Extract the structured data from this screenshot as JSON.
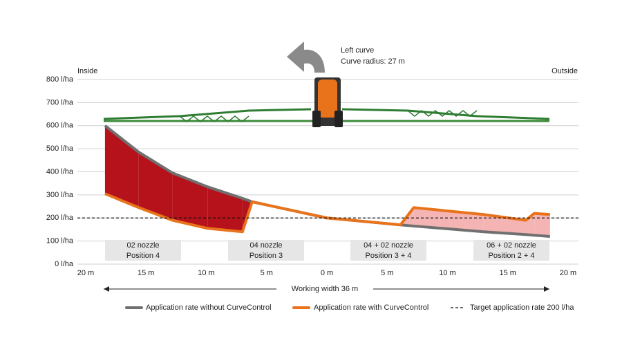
{
  "chart_data": {
    "type": "line",
    "label_inside": "Inside",
    "label_outside": "Outside",
    "annotation": [
      "Left curve",
      "Curve radius: 27 m"
    ],
    "x_axis_label": "Working width 36 m",
    "x": [
      -18.4,
      -15.6,
      -12.8,
      -9.9,
      -7.0,
      -6.2,
      0,
      6.1,
      7.2,
      13,
      16.5,
      17.2,
      18.5
    ],
    "series": [
      {
        "name": "Application rate without CurveControl",
        "color": "#707070",
        "values": [
          600,
          485,
          395,
          335,
          285,
          270,
          200,
          170,
          165,
          140,
          128,
          125,
          120
        ]
      },
      {
        "name": "Application rate with CurveControl",
        "color": "#e8731a",
        "values": [
          305,
          245,
          190,
          155,
          140,
          270,
          200,
          170,
          245,
          215,
          190,
          220,
          215
        ]
      }
    ],
    "target": {
      "name": "Target application rate 200 l/ha",
      "value": 200
    },
    "nozzles": [
      [
        "02 nozzle",
        "Position 4"
      ],
      [
        "04 nozzle",
        "Position 3"
      ],
      [
        "04 + 02 nozzle",
        "Position 3 + 4"
      ],
      [
        "06 + 02 nozzle",
        "Position 2 + 4"
      ]
    ],
    "xlim": [
      -20,
      20
    ],
    "xticks": [
      {
        "value": -20,
        "label": "20 m"
      },
      {
        "value": -15,
        "label": "15 m"
      },
      {
        "value": -10,
        "label": "10 m"
      },
      {
        "value": -5,
        "label": "5 m"
      },
      {
        "value": 0,
        "label": "0 m"
      },
      {
        "value": 5,
        "label": "5 m"
      },
      {
        "value": 10,
        "label": "10 m"
      },
      {
        "value": 15,
        "label": "15 m"
      },
      {
        "value": 20,
        "label": "20 m"
      }
    ],
    "ylim": [
      0,
      800
    ],
    "yticks": [
      {
        "value": 0,
        "label": "0 l/ha"
      },
      {
        "value": 100,
        "label": "100 l/ha"
      },
      {
        "value": 200,
        "label": "200 l/ha"
      },
      {
        "value": 300,
        "label": "300 l/ha"
      },
      {
        "value": 400,
        "label": "400 l/ha"
      },
      {
        "value": 500,
        "label": "500 l/ha"
      },
      {
        "value": 600,
        "label": "600 l/ha"
      },
      {
        "value": 700,
        "label": "700 l/ha"
      },
      {
        "value": 800,
        "label": "800 l/ha"
      }
    ],
    "grid": true
  }
}
